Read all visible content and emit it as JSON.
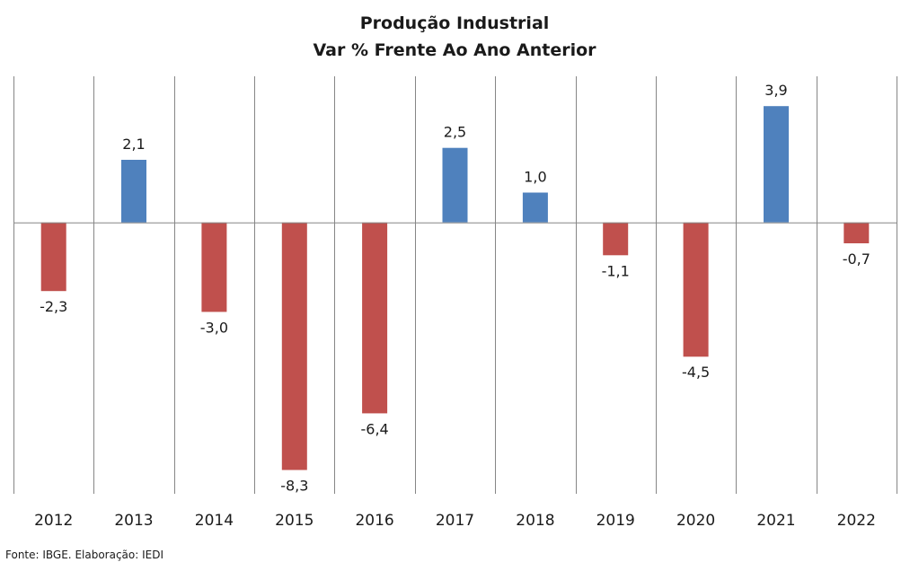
{
  "chart_data": {
    "type": "bar",
    "title": "Produção Industrial",
    "subtitle": "Var % Frente Ao Ano Anterior",
    "xlabel": "",
    "ylabel": "",
    "categories": [
      "2012",
      "2013",
      "2014",
      "2015",
      "2016",
      "2017",
      "2018",
      "2019",
      "2020",
      "2021",
      "2022"
    ],
    "values": [
      -2.3,
      2.1,
      -3.0,
      -8.3,
      -6.4,
      2.5,
      1.0,
      -1.1,
      -4.5,
      3.9,
      -0.7
    ],
    "data_labels": [
      "-2,3",
      "2,1",
      "-3,0",
      "-8,3",
      "-6,4",
      "2,5",
      "1,0",
      "-1,1",
      "-4,5",
      "3,9",
      "-0,7"
    ],
    "ylim": [
      -9.1,
      4.9
    ],
    "vertical_gridlines": true,
    "horizontal_gridlines": false,
    "legend": "none",
    "colors": {
      "positive": "#4F81BD",
      "negative": "#C0504D",
      "grid": "#868686",
      "axis": "#868686"
    }
  },
  "footer": {
    "source": "Fonte: IBGE. Elaboração: IEDI"
  }
}
